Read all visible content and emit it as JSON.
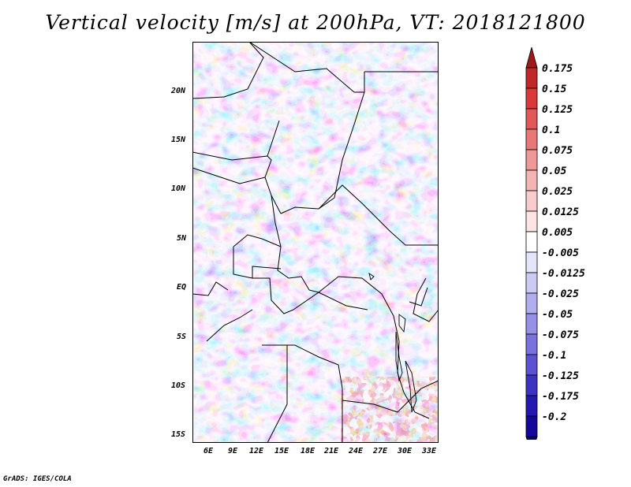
{
  "title": "Vertical velocity [m/s] at 200hPa, VT: 2018121800",
  "map": {
    "latitude_labels": [
      "20N",
      "15N",
      "10N",
      "5N",
      "EQ",
      "5S",
      "10S",
      "15S"
    ],
    "longitude_labels": [
      "6E",
      "9E",
      "12E",
      "15E",
      "18E",
      "21E",
      "24E",
      "27E",
      "30E",
      "33E"
    ]
  },
  "colorbar": {
    "labels": [
      "0.175",
      "0.15",
      "0.125",
      "0.1",
      "0.075",
      "0.05",
      "0.025",
      "0.0125",
      "0.005",
      "-0.005",
      "-0.0125",
      "-0.025",
      "-0.05",
      "-0.075",
      "-0.1",
      "-0.125",
      "-0.175",
      "-0.2"
    ],
    "colors": [
      "#a01818",
      "#c02828",
      "#d83a3a",
      "#e05858",
      "#e87878",
      "#f09898",
      "#f4b4b4",
      "#f8cccc",
      "#fce4e4",
      "#ffffff",
      "#e4e4fa",
      "#cccaf4",
      "#b0aeee",
      "#9690e6",
      "#7872dc",
      "#5a52d0",
      "#3c34c0",
      "#2418b0",
      "#140898",
      "#0a0070"
    ]
  },
  "credit": "GrADS: IGES/COLA"
}
